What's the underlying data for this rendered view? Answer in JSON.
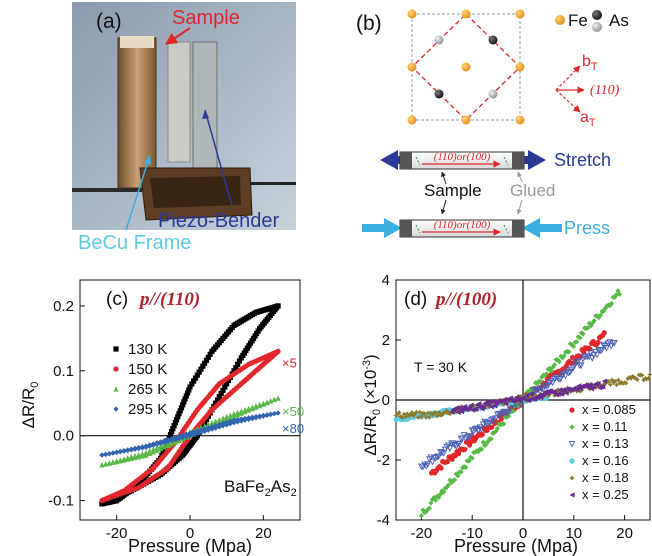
{
  "panel_a": {
    "label": "(a)",
    "sample_label": "Sample",
    "piezo_label": "Piezo-Bender",
    "frame_label": "BeCu Frame"
  },
  "panel_b": {
    "label": "(b)",
    "legend_fe": "Fe",
    "legend_as": "As",
    "axis_b": "b",
    "axis_b_sub": "T",
    "axis_a": "a",
    "axis_a_sub": "T",
    "axis_110": "(110)",
    "bar_text": "(110)or(100)",
    "stretch_label": "Stretch",
    "press_label": "Press",
    "sample_label": "Sample",
    "glued_label": "Glued"
  },
  "colors": {
    "red_label": "#e2272c",
    "navy": "#2a3a96",
    "cyan": "#3ab0e0",
    "lightcyan": "#5ecbe6",
    "fe_orange": "#f3a42a",
    "dark_red_text": "#b22229"
  },
  "chart_data": [
    {
      "type": "line",
      "panel": "(c)",
      "title": "p//(110)",
      "xlabel": "Pressure (Mpa)",
      "ylabel": "ΔR/R0",
      "annotation": "BaFe2As2",
      "xlim": [
        -30,
        30
      ],
      "ylim": [
        -0.13,
        0.24
      ],
      "x_ticks": [
        "-20",
        "0",
        "20"
      ],
      "y_ticks": [
        "-0.1",
        "0.0",
        "0.1",
        "0.2"
      ],
      "legend_placement": "left",
      "series": [
        {
          "name": "130 K",
          "color": "#000000",
          "marker": "square",
          "scale_label": "",
          "upper": [
            [
              -24,
              -0.105
            ],
            [
              -16,
              -0.085
            ],
            [
              -8,
              -0.06
            ],
            [
              -2,
              -0.03
            ],
            [
              2,
              0.0
            ],
            [
              8,
              0.06
            ],
            [
              14,
              0.12
            ],
            [
              19,
              0.165
            ],
            [
              24,
              0.2
            ]
          ],
          "lower": [
            [
              24,
              0.2
            ],
            [
              18,
              0.19
            ],
            [
              12,
              0.17
            ],
            [
              6,
              0.13
            ],
            [
              0,
              0.075
            ],
            [
              -4,
              0.02
            ],
            [
              -8,
              -0.035
            ],
            [
              -14,
              -0.075
            ],
            [
              -20,
              -0.1
            ],
            [
              -24,
              -0.105
            ]
          ]
        },
        {
          "name": "150 K",
          "color": "#e2272c",
          "marker": "circle",
          "scale_label": "×5",
          "upper": [
            [
              -24,
              -0.1
            ],
            [
              -14,
              -0.08
            ],
            [
              -6,
              -0.05
            ],
            [
              0,
              0.0
            ],
            [
              6,
              0.04
            ],
            [
              14,
              0.08
            ],
            [
              20,
              0.11
            ],
            [
              24,
              0.13
            ]
          ],
          "lower": [
            [
              24,
              0.13
            ],
            [
              16,
              0.11
            ],
            [
              8,
              0.08
            ],
            [
              2,
              0.04
            ],
            [
              -4,
              -0.01
            ],
            [
              -10,
              -0.05
            ],
            [
              -18,
              -0.085
            ],
            [
              -24,
              -0.1
            ]
          ]
        },
        {
          "name": "265 K",
          "color": "#58b947",
          "marker": "triangle",
          "scale_label": "×50",
          "upper": [
            [
              -24,
              -0.045
            ],
            [
              -12,
              -0.03
            ],
            [
              0,
              0.0
            ],
            [
              12,
              0.03
            ],
            [
              24,
              0.058
            ]
          ],
          "lower": [
            [
              24,
              0.058
            ],
            [
              12,
              0.034
            ],
            [
              0,
              0.006
            ],
            [
              -12,
              -0.026
            ],
            [
              -24,
              -0.045
            ]
          ]
        },
        {
          "name": "295 K",
          "color": "#2f65b0",
          "marker": "diamond",
          "scale_label": "×80",
          "upper": [
            [
              -24,
              -0.03
            ],
            [
              -12,
              -0.018
            ],
            [
              0,
              0.0
            ],
            [
              12,
              0.02
            ],
            [
              24,
              0.035
            ]
          ],
          "lower": [
            [
              24,
              0.035
            ],
            [
              12,
              0.024
            ],
            [
              0,
              0.004
            ],
            [
              -12,
              -0.016
            ],
            [
              -24,
              -0.03
            ]
          ]
        }
      ]
    },
    {
      "type": "scatter",
      "panel": "(d)",
      "title": "p//(100)",
      "xlabel": "Pressure (Mpa)",
      "ylabel": "ΔR/R0 (×10⁻³)",
      "annotation": "T = 30 K",
      "xlim": [
        -25,
        25
      ],
      "ylim": [
        -4,
        4
      ],
      "x_ticks": [
        "-20",
        "-10",
        "0",
        "10",
        "20"
      ],
      "y_ticks": [
        "-4",
        "-2",
        "0",
        "2",
        "4"
      ],
      "legend_placement": "bottom-right",
      "series": [
        {
          "name": "x = 0.085",
          "color": "#e2272c",
          "marker": "circle",
          "xrange": [
            -18,
            16
          ],
          "slope": 0.135,
          "offset": 0.0
        },
        {
          "name": "x = 0.11",
          "color": "#58b947",
          "marker": "diamond",
          "xrange": [
            -20,
            19
          ],
          "slope": 0.19,
          "offset": 0.0
        },
        {
          "name": "x = 0.13",
          "color": "#4a5fb4",
          "marker": "triangle-open",
          "xrange": [
            -20,
            18
          ],
          "slope": 0.11,
          "offset": 0.0
        },
        {
          "name": "x = 0.16",
          "color": "#5ecbe6",
          "marker": "circle",
          "xrange": [
            -25,
            5
          ],
          "slope": 0.026,
          "offset": 0.0
        },
        {
          "name": "x = 0.18",
          "color": "#8a7a2c",
          "marker": "star",
          "xrange": [
            -25,
            25
          ],
          "slope": 0.03,
          "offset": 0.05
        },
        {
          "name": "x = 0.25",
          "color": "#6a2a94",
          "marker": "triangle-left",
          "xrange": [
            -14,
            16
          ],
          "slope": 0.03,
          "offset": 0.05
        }
      ]
    }
  ]
}
